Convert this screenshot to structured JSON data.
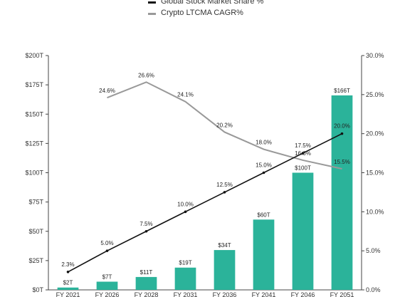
{
  "chart_data": {
    "type": "bar",
    "legend": [
      {
        "name": "Global Stock Market Share %",
        "color": "#111111"
      },
      {
        "name": "Crypto LTCMA CAGR%",
        "color": "#999999"
      }
    ],
    "categories": [
      "FY 2021",
      "FY 2026",
      "FY 2028",
      "FY 2031",
      "FY 2036",
      "FY 2041",
      "FY 2046",
      "FY 2051"
    ],
    "bar_series": {
      "values": [
        2,
        7,
        11,
        19,
        34,
        60,
        100,
        166
      ],
      "labels": [
        "$2T",
        "$7T",
        "$11T",
        "$19T",
        "$34T",
        "$60T",
        "$100T",
        "$166T"
      ],
      "color": "#2bb39a"
    },
    "share_series": {
      "name": "Global Stock Market Share %",
      "values": [
        2.3,
        5.0,
        7.5,
        10.0,
        12.5,
        15.0,
        17.5,
        20.0
      ],
      "labels": [
        "2.3%",
        "5.0%",
        "7.5%",
        "10.0%",
        "12.5%",
        "15.0%",
        "17.5%",
        "20.0%"
      ],
      "color": "#111111"
    },
    "cagr_series": {
      "name": "Crypto LTCMA CAGR%",
      "values": [
        null,
        24.6,
        26.6,
        24.1,
        20.2,
        18.0,
        16.6,
        15.5
      ],
      "labels": [
        "",
        "24.6%",
        "26.6%",
        "24.1%",
        "20.2%",
        "18.0%",
        "16.6%",
        "15.5%"
      ],
      "color": "#999999"
    },
    "y_left": {
      "ylim": [
        0,
        200
      ],
      "ticks": [
        0,
        25,
        50,
        75,
        100,
        125,
        150,
        175,
        200
      ],
      "tick_labels": [
        "$0T",
        "$25T",
        "$50T",
        "$75T",
        "$100T",
        "$125T",
        "$150T",
        "$175T",
        "$200T"
      ]
    },
    "y_right": {
      "ylim": [
        0,
        30
      ],
      "ticks": [
        0,
        5,
        10,
        15,
        20,
        25,
        30
      ],
      "tick_labels": [
        "0.0%",
        "5.0%",
        "10.0%",
        "15.0%",
        "20.0%",
        "25.0%",
        "30.0%"
      ]
    },
    "grid": false,
    "legend_position": "top-center"
  }
}
